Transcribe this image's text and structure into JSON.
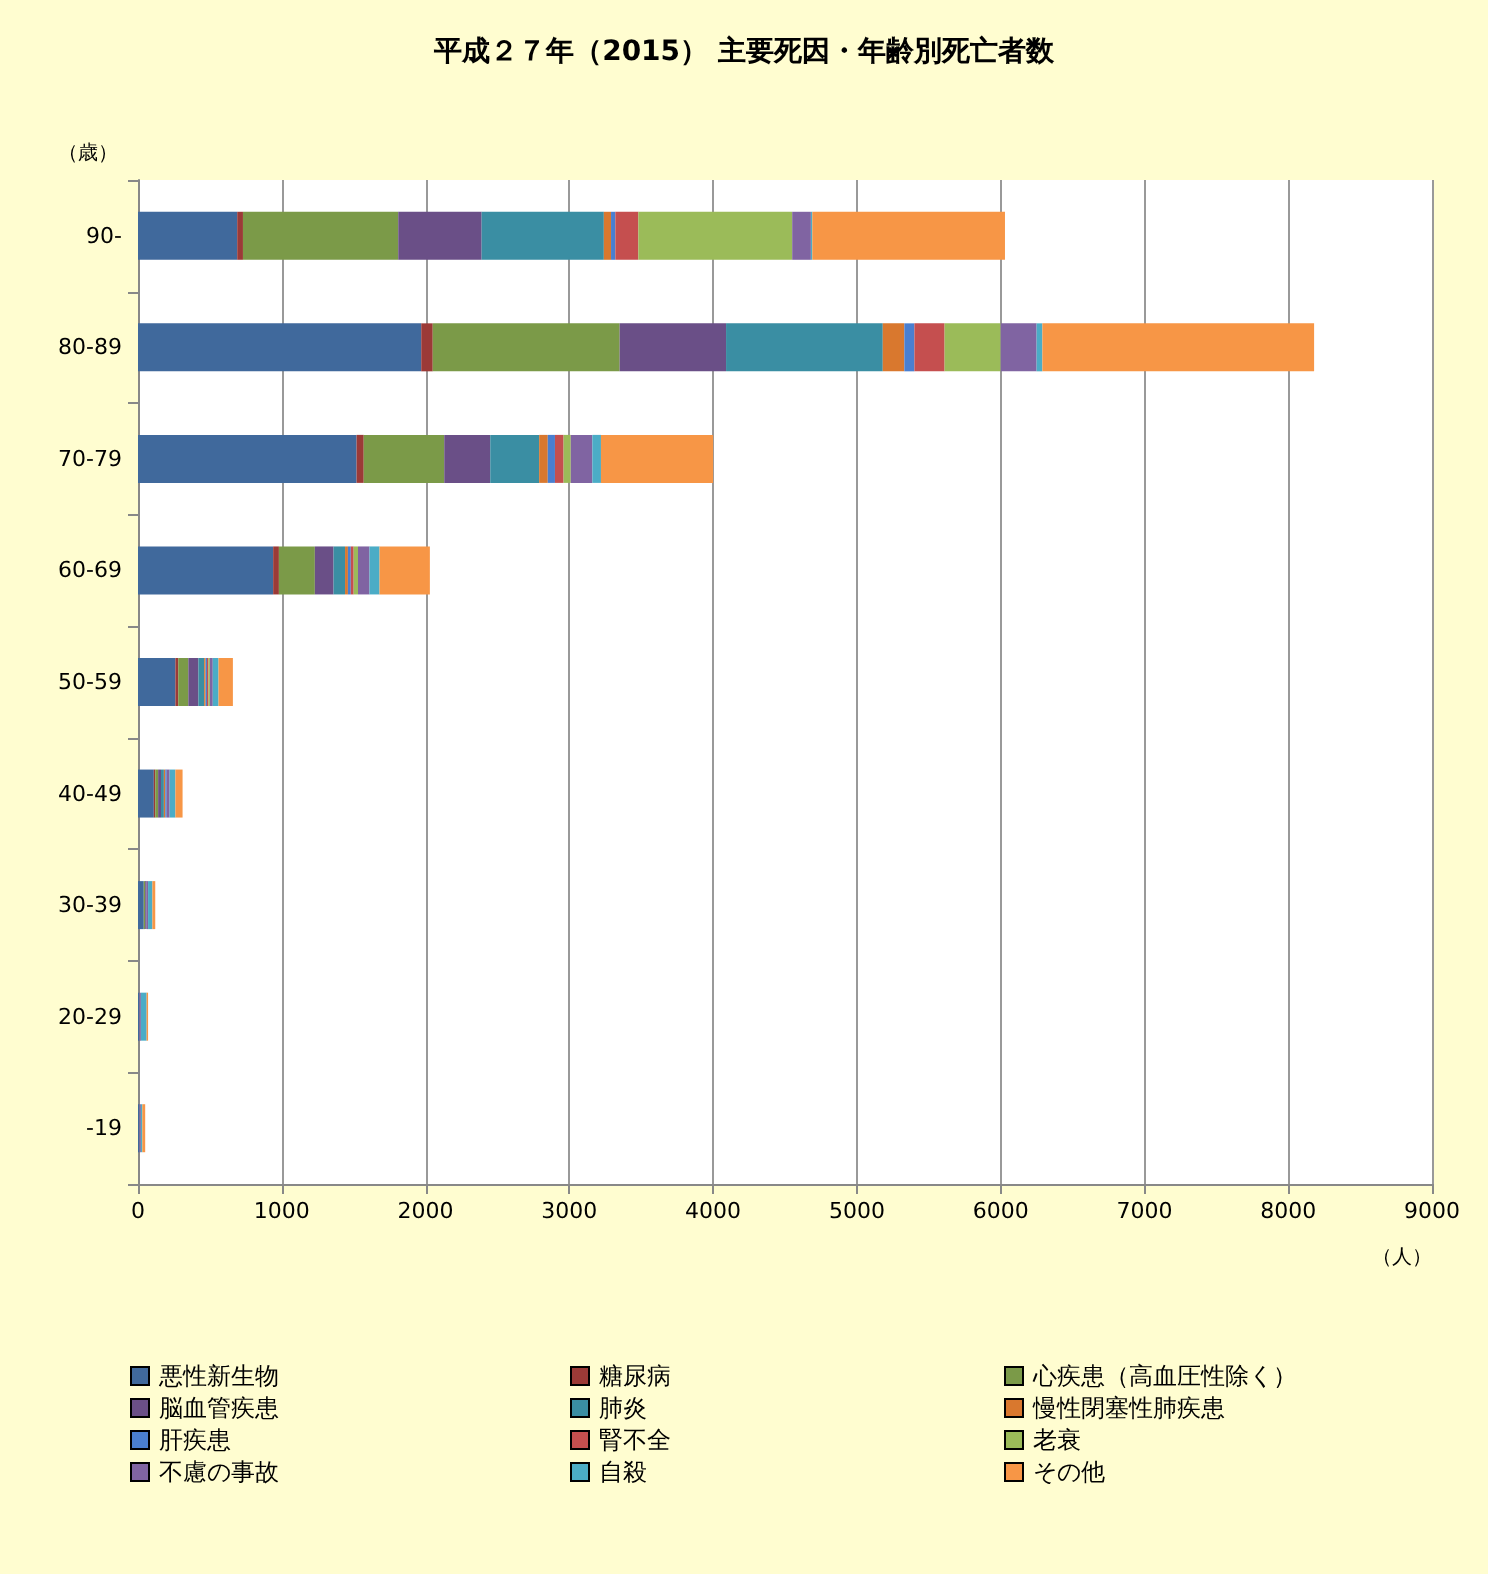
{
  "chart_data": {
    "type": "bar",
    "orientation": "horizontal",
    "stacked": true,
    "title": "平成２７年（2015） 主要死因・年齢別死亡者数",
    "xlabel": "（人）",
    "ylabel": "（歳）",
    "categories": [
      "90-",
      "80-89",
      "70-79",
      "60-69",
      "50-59",
      "40-49",
      "30-39",
      "20-29",
      "-19"
    ],
    "series": [
      {
        "name": "悪性新生物",
        "color": "#40699c",
        "values": [
          690,
          1970,
          1520,
          940,
          260,
          110,
          40,
          10,
          10
        ]
      },
      {
        "name": "糖尿病",
        "color": "#9b3a37",
        "values": [
          40,
          80,
          50,
          40,
          20,
          10,
          0,
          0,
          0
        ]
      },
      {
        "name": "心疾患（高血圧性除く）",
        "color": "#7b9a48",
        "values": [
          1080,
          1300,
          560,
          250,
          70,
          20,
          10,
          0,
          0
        ]
      },
      {
        "name": "脳血管疾患",
        "color": "#6a4f87",
        "values": [
          580,
          740,
          320,
          130,
          70,
          20,
          10,
          0,
          0
        ]
      },
      {
        "name": "肺炎",
        "color": "#3a8ea3",
        "values": [
          850,
          1090,
          340,
          80,
          40,
          20,
          0,
          0,
          0
        ]
      },
      {
        "name": "慢性閉塞性肺疾患",
        "color": "#d9782e",
        "values": [
          50,
          150,
          60,
          20,
          10,
          10,
          0,
          0,
          0
        ]
      },
      {
        "name": "肝疾患",
        "color": "#4a7fd0",
        "values": [
          30,
          70,
          50,
          20,
          10,
          10,
          0,
          0,
          0
        ]
      },
      {
        "name": "腎不全",
        "color": "#c54f4f",
        "values": [
          160,
          210,
          60,
          20,
          10,
          0,
          0,
          0,
          0
        ]
      },
      {
        "name": "老衰",
        "color": "#9bbb59",
        "values": [
          1070,
          390,
          50,
          30,
          10,
          0,
          0,
          0,
          0
        ]
      },
      {
        "name": "不慮の事故",
        "color": "#8064a2",
        "values": [
          130,
          250,
          150,
          80,
          20,
          20,
          10,
          10,
          10
        ]
      },
      {
        "name": "自殺",
        "color": "#4bacc6",
        "values": [
          10,
          40,
          60,
          70,
          40,
          40,
          30,
          40,
          10
        ]
      },
      {
        "name": "その他",
        "color": "#f79646",
        "values": [
          1340,
          1890,
          780,
          350,
          100,
          50,
          20,
          10,
          20
        ]
      }
    ],
    "xlim": [
      0,
      9000
    ],
    "xticks": [
      0,
      1000,
      2000,
      3000,
      4000,
      5000,
      6000,
      7000,
      8000,
      9000
    ],
    "grid": "x",
    "legend": "bottom"
  }
}
